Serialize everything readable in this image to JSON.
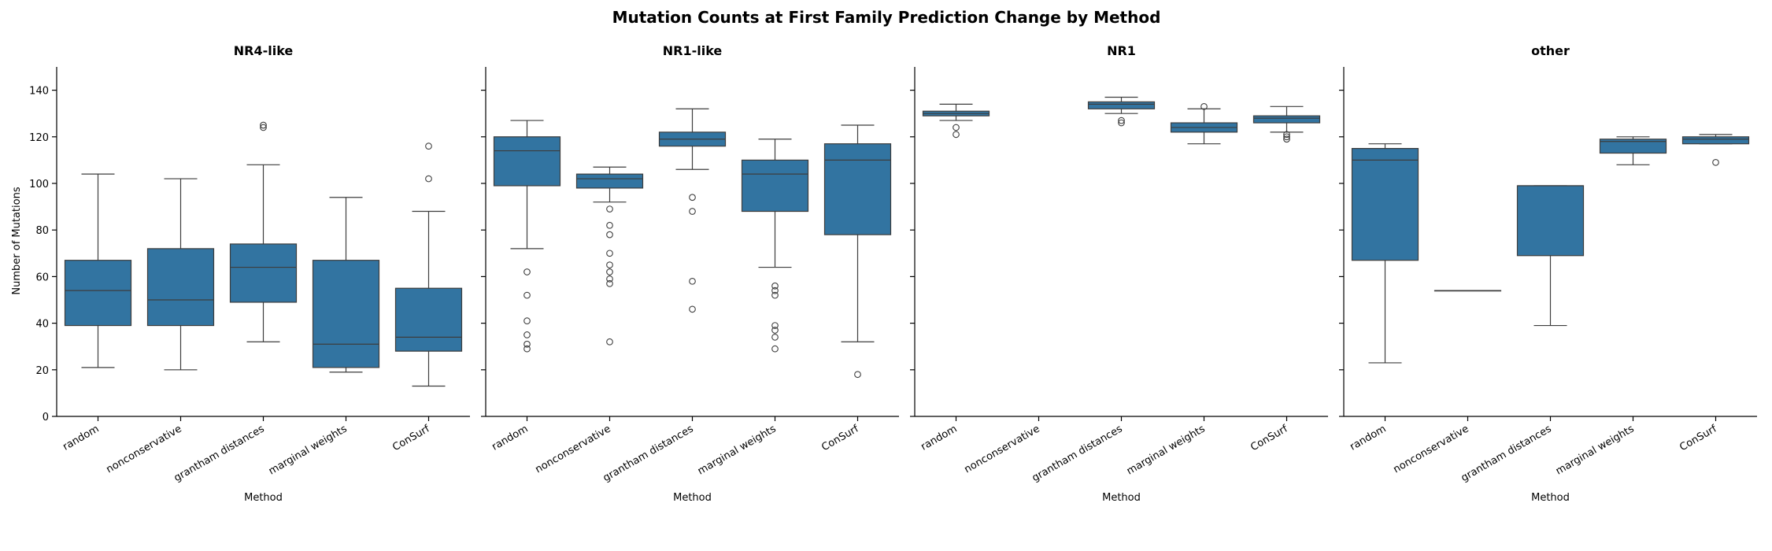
{
  "figure": {
    "title": "Mutation Counts at First Family Prediction Change by Method",
    "ylabel": "Number of Mutations",
    "xlabel": "Method"
  },
  "colors": {
    "box_fill": "#3274a1",
    "line": "#3d3d3d",
    "axis": "#000000"
  },
  "chart_data": [
    {
      "type": "boxplot",
      "title": "NR4-like",
      "xlabel": "Method",
      "ylabel": "Number of Mutations",
      "ylim": [
        0,
        150
      ],
      "yticks": [
        0,
        20,
        40,
        60,
        80,
        100,
        120,
        140
      ],
      "categories": [
        "random",
        "nonconservative",
        "grantham distances",
        "marginal weights",
        "ConSurf"
      ],
      "boxes": [
        {
          "category": "random",
          "whislo": 21,
          "q1": 39,
          "med": 54,
          "q3": 67,
          "whishi": 104,
          "fliers": []
        },
        {
          "category": "nonconservative",
          "whislo": 20,
          "q1": 39,
          "med": 50,
          "q3": 72,
          "whishi": 102,
          "fliers": []
        },
        {
          "category": "grantham distances",
          "whislo": 32,
          "q1": 49,
          "med": 64,
          "q3": 74,
          "whishi": 108,
          "fliers": [
            124,
            125
          ]
        },
        {
          "category": "marginal weights",
          "whislo": 19,
          "q1": 21,
          "med": 31,
          "q3": 67,
          "whishi": 94,
          "fliers": []
        },
        {
          "category": "ConSurf",
          "whislo": 13,
          "q1": 28,
          "med": 34,
          "q3": 55,
          "whishi": 88,
          "fliers": [
            102,
            116
          ]
        }
      ]
    },
    {
      "type": "boxplot",
      "title": "NR1-like",
      "xlabel": "Method",
      "ylim": [
        0,
        150
      ],
      "categories": [
        "random",
        "nonconservative",
        "grantham distances",
        "marginal weights",
        "ConSurf"
      ],
      "boxes": [
        {
          "category": "random",
          "whislo": 72,
          "q1": 99,
          "med": 114,
          "q3": 120,
          "whishi": 127,
          "fliers": [
            62,
            52,
            41,
            35,
            31,
            29
          ]
        },
        {
          "category": "nonconservative",
          "whislo": 92,
          "q1": 98,
          "med": 102,
          "q3": 104,
          "whishi": 107,
          "fliers": [
            89,
            82,
            78,
            70,
            65,
            62,
            59,
            57,
            32
          ]
        },
        {
          "category": "grantham distances",
          "whislo": 106,
          "q1": 116,
          "med": 119,
          "q3": 122,
          "whishi": 132,
          "fliers": [
            94,
            88,
            58,
            46
          ]
        },
        {
          "category": "marginal weights",
          "whislo": 64,
          "q1": 88,
          "med": 104,
          "q3": 110,
          "whishi": 119,
          "fliers": [
            56,
            54,
            52,
            39,
            37,
            34,
            29
          ]
        },
        {
          "category": "ConSurf",
          "whislo": 32,
          "q1": 78,
          "med": 110,
          "q3": 117,
          "whishi": 125,
          "fliers": [
            18
          ]
        }
      ]
    },
    {
      "type": "boxplot",
      "title": "NR1",
      "xlabel": "Method",
      "ylim": [
        0,
        150
      ],
      "categories": [
        "random",
        "nonconservative",
        "grantham distances",
        "marginal weights",
        "ConSurf"
      ],
      "boxes": [
        {
          "category": "random",
          "whislo": 127,
          "q1": 129,
          "med": 130,
          "q3": 131,
          "whishi": 134,
          "fliers": [
            124,
            121
          ]
        },
        {
          "category": "nonconservative",
          "empty": true
        },
        {
          "category": "grantham distances",
          "whislo": 130,
          "q1": 132,
          "med": 134,
          "q3": 135,
          "whishi": 137,
          "fliers": [
            127,
            126
          ]
        },
        {
          "category": "marginal weights",
          "whislo": 117,
          "q1": 122,
          "med": 124,
          "q3": 126,
          "whishi": 132,
          "fliers": [
            133
          ]
        },
        {
          "category": "ConSurf",
          "whislo": 122,
          "q1": 126,
          "med": 128,
          "q3": 129,
          "whishi": 133,
          "fliers": [
            121,
            120,
            119
          ]
        }
      ]
    },
    {
      "type": "boxplot",
      "title": "other",
      "xlabel": "Method",
      "ylim": [
        0,
        150
      ],
      "categories": [
        "random",
        "nonconservative",
        "grantham distances",
        "marginal weights",
        "ConSurf"
      ],
      "boxes": [
        {
          "category": "random",
          "whislo": 23,
          "q1": 67,
          "med": 110,
          "q3": 115,
          "whishi": 117,
          "fliers": []
        },
        {
          "category": "nonconservative",
          "whislo": 54,
          "q1": 54,
          "med": 54,
          "q3": 54,
          "whishi": 54,
          "fliers": []
        },
        {
          "category": "grantham distances",
          "whislo": 39,
          "q1": 69,
          "med": 99,
          "q3": 99,
          "whishi": 99,
          "fliers": []
        },
        {
          "category": "marginal weights",
          "whislo": 108,
          "q1": 113,
          "med": 118,
          "q3": 119,
          "whishi": 120,
          "fliers": []
        },
        {
          "category": "ConSurf",
          "whislo": 117,
          "q1": 117,
          "med": 119,
          "q3": 120,
          "whishi": 121,
          "fliers": [
            109
          ]
        }
      ]
    }
  ]
}
